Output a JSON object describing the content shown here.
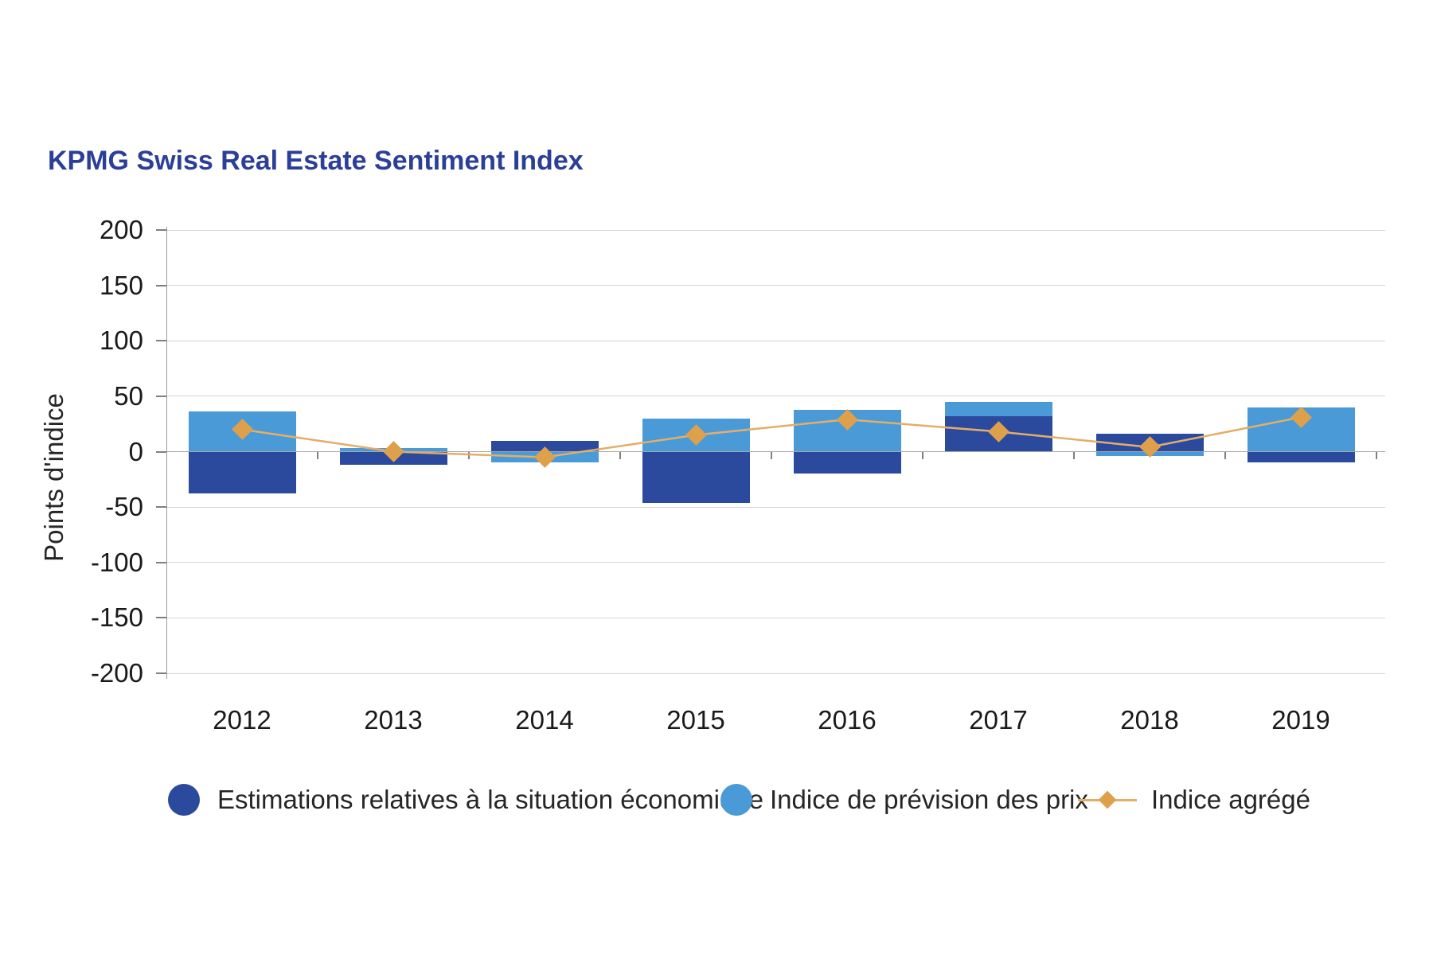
{
  "title": "KPMG Swiss Real Estate Sentiment Index",
  "colors": {
    "title_blue": "#2B3F97",
    "dark_blue": "#2B4A9E",
    "light_blue": "#4A9AD8",
    "orange_marker": "#DFA04C",
    "orange_line": "#E4AE68",
    "gridline": "#d6d6d6",
    "zero_line": "#a8a8a8",
    "axis": "#7f7f7f"
  },
  "chart_data": {
    "type": "bar",
    "subtype": "stacked-bars-with-line-overlay",
    "title": "KPMG Swiss Real Estate Sentiment Index",
    "ylabel": "Points d'indice",
    "xlabel": "",
    "ylim": [
      -200,
      200
    ],
    "yticks": [
      200,
      150,
      100,
      50,
      0,
      -50,
      -100,
      -150,
      -200
    ],
    "grid": "horizontal",
    "legend_position": "bottom",
    "categories": [
      "2012",
      "2013",
      "2014",
      "2015",
      "2016",
      "2017",
      "2018",
      "2019"
    ],
    "series": [
      {
        "name": "Estimations relatives à la situation économique",
        "kind": "bar",
        "color_key": "dark_blue",
        "values": [
          -38,
          -12,
          10,
          -46,
          -20,
          32,
          16,
          -10
        ]
      },
      {
        "name": "Indice de prévision des prix",
        "kind": "bar",
        "color_key": "light_blue",
        "values": [
          36,
          3,
          -10,
          30,
          38,
          13,
          -4,
          40
        ]
      },
      {
        "name": "Indice agrégé",
        "kind": "line",
        "color_key": "orange_marker",
        "values": [
          20,
          0,
          -5,
          15,
          29,
          18,
          4,
          31
        ]
      }
    ]
  }
}
